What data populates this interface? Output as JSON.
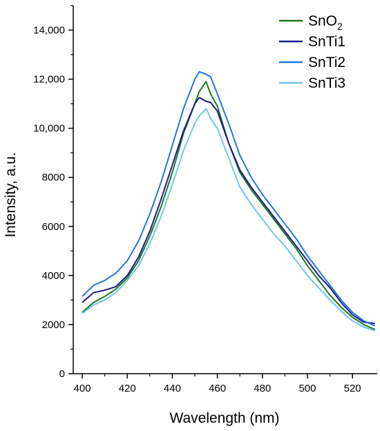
{
  "chart_data": {
    "type": "line",
    "xlabel": "Wavelength (nm)",
    "ylabel": "Intensity, a.u.",
    "xlim": [
      396,
      531
    ],
    "ylim": [
      0,
      15000
    ],
    "xticks": [
      400,
      420,
      440,
      460,
      480,
      500,
      520
    ],
    "xtick_labels": [
      "400",
      "420",
      "440",
      "460",
      "480",
      "500",
      "520"
    ],
    "yticks": [
      0,
      2000,
      4000,
      6000,
      8000,
      10000,
      12000,
      14000
    ],
    "ytick_labels": [
      "0",
      "2000",
      "4000",
      "6000",
      "8000",
      "10,000",
      "12,000",
      "14,000"
    ],
    "grid": false,
    "legend_position": "top-right",
    "legend": [
      {
        "base": "SnO",
        "sub": "2"
      },
      {
        "base": "SnTi1",
        "sub": ""
      },
      {
        "base": "SnTi2",
        "sub": ""
      },
      {
        "base": "SnTi3",
        "sub": ""
      }
    ],
    "x": [
      400,
      405,
      410,
      415,
      420,
      425,
      430,
      435,
      440,
      445,
      450,
      452,
      455,
      457,
      460,
      465,
      470,
      475,
      480,
      485,
      490,
      495,
      500,
      505,
      510,
      515,
      520,
      525,
      530
    ],
    "series": [
      {
        "name": "SnO2",
        "color": "#1a7a1a",
        "values": [
          2500,
          2900,
          3150,
          3450,
          3900,
          4600,
          5600,
          6800,
          8200,
          9800,
          11000,
          11500,
          11900,
          11400,
          10900,
          9400,
          8200,
          7500,
          6900,
          6300,
          5700,
          5100,
          4400,
          3800,
          3200,
          2700,
          2300,
          2000,
          1800
        ]
      },
      {
        "name": "SnTi1",
        "color": "#1a1a8c",
        "values": [
          2900,
          3300,
          3400,
          3550,
          4000,
          4750,
          5800,
          7100,
          8500,
          9900,
          11000,
          11250,
          11100,
          11050,
          10700,
          9400,
          8300,
          7600,
          7000,
          6400,
          5800,
          5200,
          4600,
          4000,
          3500,
          2900,
          2400,
          2100,
          2050
        ]
      },
      {
        "name": "SnTi2",
        "color": "#1f78d8",
        "values": [
          3150,
          3600,
          3800,
          4100,
          4600,
          5400,
          6500,
          7800,
          9300,
          10800,
          12000,
          12300,
          12200,
          12100,
          11400,
          10200,
          8900,
          8000,
          7300,
          6700,
          6100,
          5500,
          4800,
          4200,
          3600,
          3000,
          2500,
          2150,
          1950
        ]
      },
      {
        "name": "SnTi3",
        "color": "#6ec6ee",
        "values": [
          2450,
          2800,
          3000,
          3300,
          3800,
          4400,
          5300,
          6400,
          7700,
          9100,
          10200,
          10500,
          10800,
          10400,
          10000,
          8800,
          7600,
          6900,
          6300,
          5700,
          5200,
          4600,
          4000,
          3500,
          3000,
          2550,
          2150,
          1900,
          1750
        ]
      }
    ]
  }
}
